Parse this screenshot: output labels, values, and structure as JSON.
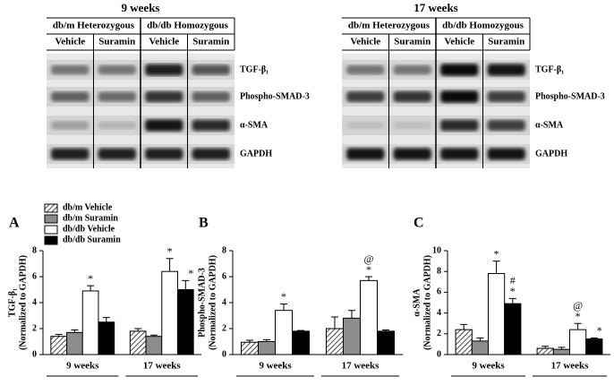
{
  "blots": [
    {
      "title": "9 weeks",
      "groups": [
        "db/m Heterozygous",
        "db/db Homozygous"
      ],
      "lanes": [
        "Vehicle",
        "Suramin",
        "Vehicle",
        "Suramin"
      ],
      "rows": [
        "TGF-β₁",
        "Phospho-SMAD-3",
        "α-SMA",
        "GAPDH"
      ]
    },
    {
      "title": "17 weeks",
      "groups": [
        "db/m Heterozygous",
        "db/db Homozygous"
      ],
      "lanes": [
        "Vehicle",
        "Suramin",
        "Vehicle",
        "Suramin"
      ],
      "rows": [
        "TGF-β₁",
        "Phospho-SMAD-3",
        "α-SMA",
        "GAPDH"
      ]
    }
  ],
  "chart_data": [
    {
      "type": "bar",
      "panel": "A",
      "ylabel": [
        "TGF-β₁",
        "(Normalized to GAPDH)"
      ],
      "categories": [
        "9 weeks",
        "17 weeks"
      ],
      "ylim": [
        0,
        8
      ],
      "yticks": [
        0,
        2,
        4,
        6,
        8
      ],
      "legend": "upper left",
      "series": [
        {
          "name": "db/m Vehicle",
          "color": "#ffffff",
          "hatch": true,
          "values": [
            1.4,
            1.8
          ],
          "errors": [
            0.15,
            0.2
          ]
        },
        {
          "name": "db/m Suramin",
          "color": "#8c8c8c",
          "values": [
            1.7,
            1.4
          ],
          "errors": [
            0.2,
            0.1
          ]
        },
        {
          "name": "db/db Vehicle",
          "color": "#ffffff",
          "values": [
            4.9,
            6.4
          ],
          "errors": [
            0.4,
            1.0
          ]
        },
        {
          "name": "db/db Suramin",
          "color": "#000000",
          "values": [
            2.5,
            5.0
          ],
          "errors": [
            0.35,
            0.7
          ]
        }
      ],
      "annotations": [
        {
          "series": 2,
          "category": 0,
          "texts": [
            "*"
          ]
        },
        {
          "series": 2,
          "category": 1,
          "texts": [
            "*"
          ]
        },
        {
          "series": 3,
          "category": 1,
          "texts": [
            "*"
          ]
        }
      ]
    },
    {
      "type": "bar",
      "panel": "B",
      "ylabel": [
        "Phospho-SMAD-3",
        "(Normalized to GAPDH)"
      ],
      "categories": [
        "9 weeks",
        "17 weeks"
      ],
      "ylim": [
        0,
        8
      ],
      "yticks": [
        0,
        2,
        4,
        6,
        8
      ],
      "series": [
        {
          "color": "#ffffff",
          "hatch": true,
          "values": [
            0.95,
            2.0
          ],
          "errors": [
            0.15,
            0.9
          ]
        },
        {
          "color": "#8c8c8c",
          "values": [
            1.0,
            2.8
          ],
          "errors": [
            0.15,
            0.6
          ]
        },
        {
          "color": "#ffffff",
          "values": [
            3.4,
            5.7
          ],
          "errors": [
            0.5,
            0.3
          ]
        },
        {
          "color": "#000000",
          "values": [
            1.8,
            1.8
          ],
          "errors": [
            0.05,
            0.1
          ]
        }
      ],
      "annotations": [
        {
          "series": 2,
          "category": 0,
          "texts": [
            "*"
          ]
        },
        {
          "series": 2,
          "category": 1,
          "texts": [
            "@",
            "*"
          ]
        }
      ]
    },
    {
      "type": "bar",
      "panel": "C",
      "ylabel": [
        "α-SMA",
        "(Normalized to GAPDH)"
      ],
      "categories": [
        "9 weeks",
        "17 weeks"
      ],
      "ylim": [
        0,
        10
      ],
      "yticks": [
        0,
        2,
        4,
        6,
        8,
        10
      ],
      "series": [
        {
          "color": "#ffffff",
          "hatch": true,
          "values": [
            2.4,
            0.6
          ],
          "errors": [
            0.5,
            0.2
          ]
        },
        {
          "color": "#8c8c8c",
          "values": [
            1.3,
            0.5
          ],
          "errors": [
            0.3,
            0.2
          ]
        },
        {
          "color": "#ffffff",
          "values": [
            7.8,
            2.4
          ],
          "errors": [
            1.2,
            0.6
          ]
        },
        {
          "color": "#000000",
          "values": [
            4.9,
            1.5
          ],
          "errors": [
            0.5,
            0.1
          ]
        }
      ],
      "annotations": [
        {
          "series": 2,
          "category": 0,
          "texts": [
            "*"
          ]
        },
        {
          "series": 3,
          "category": 0,
          "texts": [
            "#",
            "*"
          ]
        },
        {
          "series": 2,
          "category": 1,
          "texts": [
            "@",
            "*"
          ]
        },
        {
          "series": 3,
          "category": 1,
          "texts": [
            "*"
          ]
        }
      ]
    }
  ]
}
